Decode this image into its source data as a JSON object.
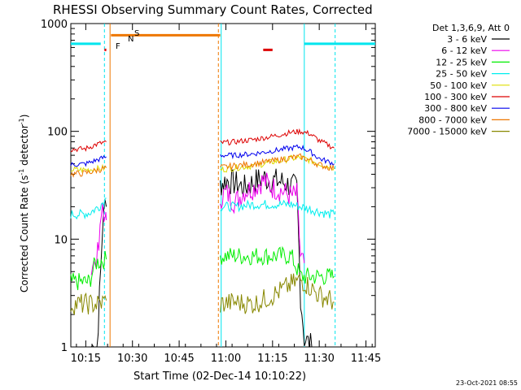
{
  "chart_data": {
    "type": "line",
    "title": "RHESSI Observing Summary Count Rates, Corrected",
    "xlabel": "Start Time (02-Dec-14 10:10:22)",
    "ylabel_main": "Corrected Count Rate (s",
    "ylabel_sup1": "-1",
    "ylabel_mid": " detector",
    "ylabel_sup2": "-1",
    "ylabel_end": ")",
    "yscale": "log",
    "ylim": [
      1,
      1000
    ],
    "xlim_minutes": [
      10.17,
      11.8
    ],
    "xtick_labels": [
      "10:15",
      "10:30",
      "10:45",
      "11:00",
      "11:15",
      "11:30",
      "11:45"
    ],
    "xtick_minutes": [
      10.25,
      10.5,
      10.75,
      11.0,
      11.25,
      11.5,
      11.75
    ],
    "ytick_labels": [
      "1",
      "10",
      "100",
      "1000"
    ],
    "ytick_values": [
      1,
      10,
      100,
      1000
    ],
    "legend_header": "Det 1,3,6,9, Att 0",
    "legend_placement": "right",
    "timestamp": "23-Oct-2021 08:55",
    "flags": {
      "F_label": "F",
      "N_label": "N",
      "S_label": "S",
      "F_color": "#dd0000",
      "N_color": "#00e5ee",
      "S_color": "#ee7700"
    },
    "series": [
      {
        "name": "3 - 6 keV",
        "color": "#000000",
        "seg1": [
          [
            10.28,
            1.0
          ],
          [
            10.31,
            1.0
          ],
          [
            10.33,
            5
          ],
          [
            10.345,
            20
          ],
          [
            10.36,
            20
          ]
        ],
        "seg2": [
          [
            10.97,
            32
          ],
          [
            11.0,
            35
          ],
          [
            11.05,
            33
          ],
          [
            11.1,
            30
          ],
          [
            11.15,
            34
          ],
          [
            11.2,
            37
          ],
          [
            11.25,
            35
          ],
          [
            11.3,
            34
          ],
          [
            11.35,
            31
          ],
          [
            11.38,
            30
          ],
          [
            11.4,
            3
          ],
          [
            11.42,
            1.2
          ],
          [
            11.46,
            1.0
          ]
        ]
      },
      {
        "name": "6 - 12 keV",
        "color": "#ee00ee",
        "seg1": [
          [
            10.28,
            6
          ],
          [
            10.3,
            6
          ],
          [
            10.32,
            8
          ],
          [
            10.34,
            22
          ],
          [
            10.355,
            14
          ],
          [
            10.36,
            15
          ]
        ],
        "seg2": [
          [
            10.97,
            24
          ],
          [
            11.0,
            27
          ],
          [
            11.05,
            22
          ],
          [
            11.1,
            28
          ],
          [
            11.15,
            30
          ],
          [
            11.2,
            35
          ],
          [
            11.25,
            30
          ],
          [
            11.3,
            28
          ],
          [
            11.35,
            25
          ],
          [
            11.38,
            26
          ],
          [
            11.4,
            7
          ],
          [
            11.42,
            6
          ]
        ]
      },
      {
        "name": "12 - 25 keV",
        "color": "#00ee00",
        "seg1": [
          [
            10.17,
            4
          ],
          [
            10.22,
            4
          ],
          [
            10.27,
            4
          ],
          [
            10.3,
            6
          ],
          [
            10.36,
            6.5
          ]
        ],
        "seg2": [
          [
            10.97,
            7
          ],
          [
            11.05,
            7
          ],
          [
            11.15,
            7
          ],
          [
            11.25,
            7
          ],
          [
            11.35,
            7
          ],
          [
            11.4,
            4.5
          ],
          [
            11.45,
            4.5
          ],
          [
            11.5,
            4.5
          ],
          [
            11.55,
            4.5
          ],
          [
            11.58,
            4.5
          ]
        ]
      },
      {
        "name": "25 - 50 keV",
        "color": "#00eeee",
        "seg1": [
          [
            10.17,
            17
          ],
          [
            10.22,
            17
          ],
          [
            10.27,
            17.5
          ],
          [
            10.32,
            20
          ],
          [
            10.36,
            24
          ]
        ],
        "seg2": [
          [
            10.97,
            20
          ],
          [
            11.05,
            20
          ],
          [
            11.15,
            21
          ],
          [
            11.25,
            21
          ],
          [
            11.35,
            21
          ],
          [
            11.4,
            20
          ],
          [
            11.45,
            19
          ],
          [
            11.5,
            18
          ],
          [
            11.55,
            17
          ],
          [
            11.58,
            17
          ]
        ]
      },
      {
        "name": "50 - 100 keV",
        "color": "#dddd00",
        "seg1": [
          [
            10.17,
            44
          ],
          [
            10.25,
            44
          ],
          [
            10.32,
            45
          ],
          [
            10.36,
            46
          ]
        ],
        "seg2": [
          [
            10.97,
            44
          ],
          [
            11.05,
            46
          ],
          [
            11.15,
            48
          ],
          [
            11.25,
            52
          ],
          [
            11.35,
            56
          ],
          [
            11.4,
            57
          ],
          [
            11.45,
            54
          ],
          [
            11.5,
            50
          ],
          [
            11.58,
            46
          ]
        ]
      },
      {
        "name": "100 - 300 keV",
        "color": "#dd0000",
        "seg1": [
          [
            10.17,
            68
          ],
          [
            10.25,
            69
          ],
          [
            10.3,
            75
          ],
          [
            10.36,
            80
          ]
        ],
        "seg2": [
          [
            10.97,
            78
          ],
          [
            11.05,
            80
          ],
          [
            11.15,
            84
          ],
          [
            11.25,
            90
          ],
          [
            11.35,
            98
          ],
          [
            11.4,
            100
          ],
          [
            11.45,
            95
          ],
          [
            11.5,
            82
          ],
          [
            11.58,
            70
          ]
        ]
      },
      {
        "name": "300 - 800 keV",
        "color": "#0000ee",
        "seg1": [
          [
            10.17,
            49
          ],
          [
            10.25,
            50
          ],
          [
            10.32,
            55
          ],
          [
            10.36,
            58
          ]
        ],
        "seg2": [
          [
            10.97,
            60
          ],
          [
            11.05,
            60
          ],
          [
            11.15,
            62
          ],
          [
            11.25,
            66
          ],
          [
            11.35,
            70
          ],
          [
            11.4,
            72
          ],
          [
            11.45,
            65
          ],
          [
            11.5,
            56
          ],
          [
            11.58,
            50
          ]
        ]
      },
      {
        "name": "800 - 7000 keV",
        "color": "#ee7700",
        "seg1": [
          [
            10.17,
            40
          ],
          [
            10.25,
            41
          ],
          [
            10.32,
            44
          ],
          [
            10.36,
            46
          ]
        ],
        "seg2": [
          [
            10.97,
            46
          ],
          [
            11.05,
            48
          ],
          [
            11.15,
            50
          ],
          [
            11.25,
            53
          ],
          [
            11.35,
            57
          ],
          [
            11.4,
            58
          ],
          [
            11.45,
            54
          ],
          [
            11.5,
            49
          ],
          [
            11.58,
            45
          ]
        ]
      },
      {
        "name": "7000 - 15000 keV",
        "color": "#888800",
        "seg1": [
          [
            10.17,
            2.5
          ],
          [
            10.22,
            2.5
          ],
          [
            10.27,
            2.5
          ],
          [
            10.32,
            2.5
          ],
          [
            10.36,
            2.7
          ]
        ],
        "seg2": [
          [
            10.97,
            2.5
          ],
          [
            11.05,
            2.6
          ],
          [
            11.15,
            2.5
          ],
          [
            11.25,
            3.0
          ],
          [
            11.35,
            3.8
          ],
          [
            11.4,
            4.2
          ],
          [
            11.45,
            3.6
          ],
          [
            11.5,
            3.0
          ],
          [
            11.55,
            2.8
          ],
          [
            11.58,
            2.6
          ]
        ]
      }
    ],
    "vlines": [
      {
        "minute": 10.35,
        "color": "#00e5ee",
        "style": "dash"
      },
      {
        "minute": 10.38,
        "color": "#ee7700",
        "style": "solid"
      },
      {
        "minute": 10.96,
        "color": "#ee7700",
        "style": "dash"
      },
      {
        "minute": 10.975,
        "color": "#00e5ee",
        "style": "solid"
      },
      {
        "minute": 11.42,
        "color": "#00e5ee",
        "style": "solid"
      },
      {
        "minute": 11.585,
        "color": "#00e5ee",
        "style": "dash"
      }
    ],
    "bars": [
      {
        "name": "night-bar-1",
        "x0": 10.17,
        "x1": 10.33,
        "y": 650,
        "color": "#00e5ee"
      },
      {
        "name": "night-bar-2",
        "x0": 11.42,
        "x1": 11.8,
        "y": 650,
        "color": "#00e5ee"
      },
      {
        "name": "saa-bar",
        "x0": 10.385,
        "x1": 10.97,
        "y": 780,
        "color": "#ee7700"
      },
      {
        "name": "flare-bar",
        "x0": 11.2,
        "x1": 11.25,
        "y": 570,
        "color": "#dd0000"
      },
      {
        "name": "f-marker",
        "x0": 10.35,
        "x1": 10.36,
        "y": 570,
        "color": "#dd0000"
      }
    ]
  }
}
